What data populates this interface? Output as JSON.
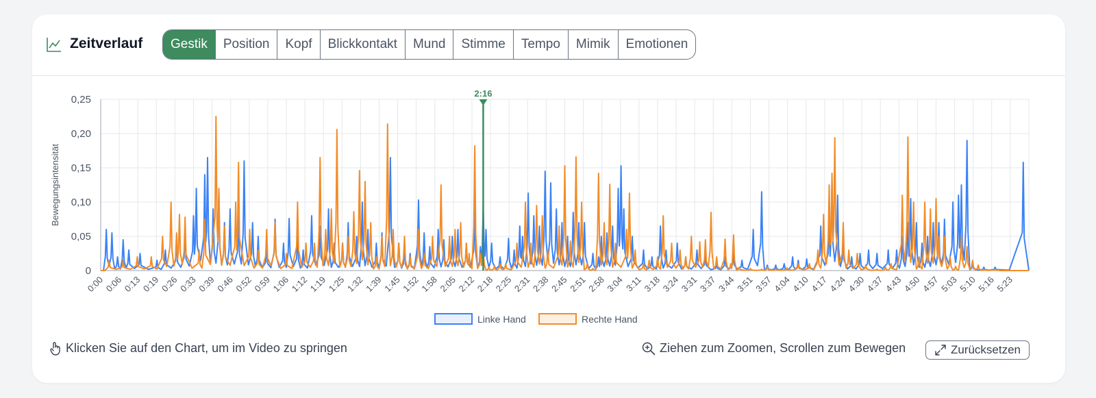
{
  "header": {
    "title": "Zeitverlauf",
    "tabs": [
      {
        "label": "Gestik",
        "active": true
      },
      {
        "label": "Position",
        "active": false
      },
      {
        "label": "Kopf",
        "active": false
      },
      {
        "label": "Blickkontakt",
        "active": false
      },
      {
        "label": "Mund",
        "active": false
      },
      {
        "label": "Stimme",
        "active": false
      },
      {
        "label": "Tempo",
        "active": false
      },
      {
        "label": "Mimik",
        "active": false
      },
      {
        "label": "Emotionen",
        "active": false
      }
    ]
  },
  "footer": {
    "hint": "Klicken Sie auf den Chart, um im Video zu springen",
    "zoom_hint": "Ziehen zum Zoomen, Scrollen zum Bewegen",
    "reset_label": "Zurücksetzen"
  },
  "colors": {
    "accent": "#3d8b5e",
    "linke": "#3b82f6",
    "rechte": "#f28c28"
  },
  "chart_data": {
    "type": "line",
    "ylabel": "Bewegungsintensität",
    "ylim": [
      0,
      0.25
    ],
    "y_ticks": [
      "0",
      "0,05",
      "0,10",
      "0,15",
      "0,20",
      "0,25"
    ],
    "x_ticks": [
      "0:00",
      "0:06",
      "0:13",
      "0:19",
      "0:26",
      "0:33",
      "0:39",
      "0:46",
      "0:52",
      "0:59",
      "1:06",
      "1:12",
      "1:19",
      "1:25",
      "1:32",
      "1:39",
      "1:45",
      "1:52",
      "1:58",
      "2:05",
      "2:12",
      "2:18",
      "2:25",
      "2:31",
      "2:38",
      "2:45",
      "2:51",
      "2:58",
      "3:04",
      "3:11",
      "3:18",
      "3:24",
      "3:31",
      "3:37",
      "3:44",
      "3:51",
      "3:57",
      "4:04",
      "4:10",
      "4:17",
      "4:24",
      "4:30",
      "4:37",
      "4:43",
      "4:50",
      "4:57",
      "5:03",
      "5:10",
      "5:16",
      "5:23"
    ],
    "x_range_seconds": [
      0,
      330
    ],
    "marker": {
      "label": "2:16",
      "seconds": 136
    },
    "legend_position": "bottom",
    "grid": true,
    "series": [
      {
        "name": "Linke Hand",
        "color": "#3b82f6",
        "peaks": [
          [
            2,
            0.06
          ],
          [
            4,
            0.055
          ],
          [
            6,
            0.02
          ],
          [
            8,
            0.045
          ],
          [
            10,
            0.03
          ],
          [
            14,
            0.025
          ],
          [
            20,
            0.015
          ],
          [
            23,
            0.03
          ],
          [
            27,
            0.04
          ],
          [
            30,
            0.055
          ],
          [
            33,
            0.08
          ],
          [
            34,
            0.12
          ],
          [
            37,
            0.14
          ],
          [
            38,
            0.165
          ],
          [
            40,
            0.09
          ],
          [
            42,
            0.115
          ],
          [
            44,
            0.07
          ],
          [
            46,
            0.09
          ],
          [
            49,
            0.08
          ],
          [
            51,
            0.16
          ],
          [
            54,
            0.07
          ],
          [
            56,
            0.05
          ],
          [
            59,
            0.035
          ],
          [
            62,
            0.075
          ],
          [
            65,
            0.04
          ],
          [
            67,
            0.076
          ],
          [
            70,
            0.05
          ],
          [
            72,
            0.03
          ],
          [
            75,
            0.08
          ],
          [
            78,
            0.065
          ],
          [
            81,
            0.09
          ],
          [
            83,
            0.04
          ],
          [
            86,
            0.04
          ],
          [
            88,
            0.07
          ],
          [
            91,
            0.05
          ],
          [
            93,
            0.1
          ],
          [
            95,
            0.06
          ],
          [
            98,
            0.04
          ],
          [
            100,
            0.055
          ],
          [
            103,
            0.165
          ],
          [
            106,
            0.04
          ],
          [
            108,
            0.03
          ],
          [
            110,
            0.025
          ],
          [
            113,
            0.103
          ],
          [
            115,
            0.055
          ],
          [
            117,
            0.035
          ],
          [
            120,
            0.06
          ],
          [
            122,
            0.045
          ],
          [
            125,
            0.05
          ],
          [
            127,
            0.06
          ],
          [
            130,
            0.04
          ],
          [
            133,
            0.088
          ],
          [
            135,
            0.035
          ],
          [
            136,
            0.095
          ],
          [
            137,
            0.06
          ],
          [
            139,
            0.04
          ],
          [
            142,
            0.02
          ],
          [
            145,
            0.047
          ],
          [
            147,
            0.03
          ],
          [
            149,
            0.065
          ],
          [
            150,
            0.05
          ],
          [
            152,
            0.113
          ],
          [
            154,
            0.08
          ],
          [
            156,
            0.065
          ],
          [
            158,
            0.145
          ],
          [
            160,
            0.128
          ],
          [
            162,
            0.09
          ],
          [
            164,
            0.07
          ],
          [
            166,
            0.05
          ],
          [
            168,
            0.085
          ],
          [
            170,
            0.07
          ],
          [
            172,
            0.07
          ],
          [
            175,
            0.025
          ],
          [
            177,
            0.02
          ],
          [
            178,
            0.05
          ],
          [
            180,
            0.055
          ],
          [
            182,
            0.065
          ],
          [
            184,
            0.12
          ],
          [
            185,
            0.153
          ],
          [
            186,
            0.09
          ],
          [
            189,
            0.05
          ],
          [
            193,
            0.03
          ],
          [
            196,
            0.02
          ],
          [
            199,
            0.065
          ],
          [
            201,
            0.03
          ],
          [
            205,
            0.04
          ],
          [
            208,
            0.02
          ],
          [
            212,
            0.03
          ],
          [
            215,
            0.025
          ],
          [
            219,
            0.01
          ],
          [
            222,
            0.02
          ],
          [
            225,
            0.025
          ],
          [
            228,
            0.015
          ],
          [
            232,
            0.06
          ],
          [
            235,
            0.115
          ],
          [
            237,
            0.008
          ],
          [
            240,
            0.008
          ],
          [
            243,
            0.01
          ],
          [
            246,
            0.02
          ],
          [
            248,
            0.015
          ],
          [
            251,
            0.017
          ],
          [
            256,
            0.065
          ],
          [
            259,
            0.07
          ],
          [
            260,
            0.13
          ],
          [
            262,
            0.11
          ],
          [
            264,
            0.05
          ],
          [
            267,
            0.02
          ],
          [
            270,
            0.025
          ],
          [
            273,
            0.03
          ],
          [
            276,
            0.025
          ],
          [
            280,
            0.03
          ],
          [
            283,
            0.03
          ],
          [
            285,
            0.05
          ],
          [
            287,
            0.07
          ],
          [
            288,
            0.105
          ],
          [
            290,
            0.07
          ],
          [
            292,
            0.04
          ],
          [
            294,
            0.05
          ],
          [
            296,
            0.07
          ],
          [
            298,
            0.07
          ],
          [
            300,
            0.075
          ],
          [
            303,
            0.1
          ],
          [
            305,
            0.11
          ],
          [
            306,
            0.125
          ],
          [
            308,
            0.19
          ],
          [
            310,
            0.01
          ],
          [
            314,
            0.005
          ],
          [
            318,
            0.005
          ],
          [
            328,
            0.158
          ]
        ]
      },
      {
        "name": "Rechte Hand",
        "color": "#f28c28",
        "peaks": [
          [
            3,
            0.015
          ],
          [
            8,
            0.015
          ],
          [
            13,
            0.02
          ],
          [
            18,
            0.02
          ],
          [
            22,
            0.05
          ],
          [
            25,
            0.1
          ],
          [
            27,
            0.055
          ],
          [
            28,
            0.082
          ],
          [
            30,
            0.078
          ],
          [
            35,
            0.03
          ],
          [
            37,
            0.075
          ],
          [
            41,
            0.225
          ],
          [
            42,
            0.12
          ],
          [
            44,
            0.065
          ],
          [
            48,
            0.1
          ],
          [
            49,
            0.158
          ],
          [
            53,
            0.06
          ],
          [
            56,
            0.03
          ],
          [
            59,
            0.06
          ],
          [
            62,
            0.07
          ],
          [
            66,
            0.025
          ],
          [
            70,
            0.1
          ],
          [
            73,
            0.04
          ],
          [
            76,
            0.04
          ],
          [
            78,
            0.165
          ],
          [
            80,
            0.06
          ],
          [
            82,
            0.09
          ],
          [
            84,
            0.206
          ],
          [
            86,
            0.04
          ],
          [
            88,
            0.05
          ],
          [
            90,
            0.086
          ],
          [
            92,
            0.146
          ],
          [
            94,
            0.13
          ],
          [
            96,
            0.07
          ],
          [
            98,
            0.02
          ],
          [
            100,
            0.05
          ],
          [
            102,
            0.214
          ],
          [
            104,
            0.06
          ],
          [
            106,
            0.04
          ],
          [
            108,
            0.05
          ],
          [
            110,
            0.02
          ],
          [
            113,
            0.06
          ],
          [
            115,
            0.025
          ],
          [
            118,
            0.05
          ],
          [
            121,
            0.125
          ],
          [
            124,
            0.05
          ],
          [
            126,
            0.06
          ],
          [
            128,
            0.07
          ],
          [
            130,
            0.04
          ],
          [
            131,
            0.025
          ],
          [
            133,
            0.182
          ],
          [
            135,
            0.025
          ],
          [
            136,
            0.03
          ],
          [
            138,
            0.005
          ],
          [
            140,
            0.006
          ],
          [
            142,
            0.01
          ],
          [
            144,
            0.01
          ],
          [
            148,
            0.04
          ],
          [
            151,
            0.1
          ],
          [
            153,
            0.04
          ],
          [
            155,
            0.095
          ],
          [
            157,
            0.08
          ],
          [
            159,
            0.03
          ],
          [
            163,
            0.065
          ],
          [
            165,
            0.153
          ],
          [
            167,
            0.043
          ],
          [
            169,
            0.166
          ],
          [
            171,
            0.1
          ],
          [
            173,
            0.01
          ],
          [
            175,
            0.003
          ],
          [
            177,
            0.142
          ],
          [
            179,
            0.07
          ],
          [
            181,
            0.126
          ],
          [
            183,
            0.04
          ],
          [
            187,
            0.06
          ],
          [
            188,
            0.113
          ],
          [
            190,
            0.03
          ],
          [
            193,
            0.01
          ],
          [
            195,
            0.015
          ],
          [
            198,
            0.02
          ],
          [
            200,
            0.08
          ],
          [
            203,
            0.04
          ],
          [
            206,
            0.03
          ],
          [
            208,
            0.02
          ],
          [
            210,
            0.05
          ],
          [
            213,
            0.042
          ],
          [
            215,
            0.045
          ],
          [
            217,
            0.085
          ],
          [
            219,
            0.02
          ],
          [
            222,
            0.046
          ],
          [
            224,
            0.01
          ],
          [
            225,
            0.052
          ],
          [
            227,
            0.005
          ],
          [
            231,
            0.003
          ],
          [
            235,
            0.002
          ],
          [
            237,
            0.005
          ],
          [
            240,
            0.003
          ],
          [
            244,
            0.004
          ],
          [
            248,
            0.01
          ],
          [
            252,
            0.01
          ],
          [
            255,
            0.03
          ],
          [
            257,
            0.082
          ],
          [
            259,
            0.125
          ],
          [
            260,
            0.142
          ],
          [
            261,
            0.194
          ],
          [
            264,
            0.07
          ],
          [
            266,
            0.03
          ],
          [
            269,
            0.025
          ],
          [
            272,
            0.008
          ],
          [
            276,
            0.002
          ],
          [
            279,
            0.005
          ],
          [
            281,
            0.01
          ],
          [
            285,
            0.11
          ],
          [
            287,
            0.195
          ],
          [
            289,
            0.1
          ],
          [
            291,
            0.02
          ],
          [
            293,
            0.1
          ],
          [
            295,
            0.09
          ],
          [
            297,
            0.105
          ],
          [
            298,
            0.05
          ],
          [
            300,
            0.05
          ],
          [
            302,
            0.02
          ],
          [
            304,
            0.006
          ],
          [
            306,
            0.05
          ],
          [
            308,
            0.035
          ],
          [
            310,
            0.015
          ],
          [
            312,
            0.008
          ],
          [
            314,
            0.002
          ],
          [
            318,
            0.002
          ],
          [
            322,
            0.0
          ]
        ]
      }
    ]
  }
}
